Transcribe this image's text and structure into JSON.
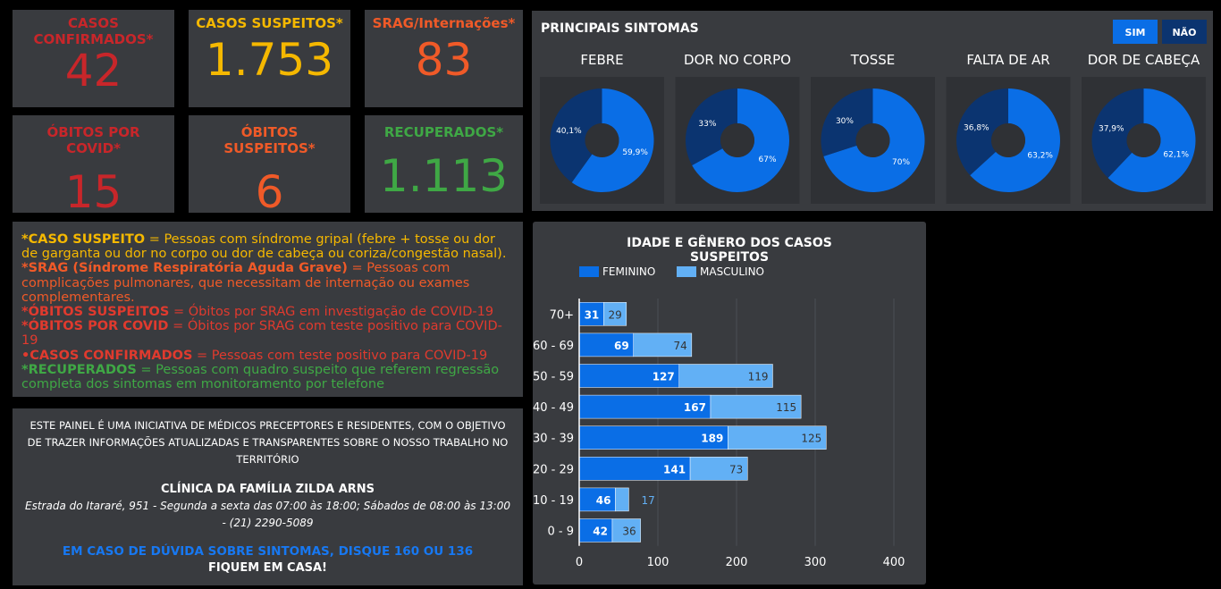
{
  "kpis": [
    {
      "label": "CASOS CONFIRMADOS*",
      "value": "42"
    },
    {
      "label": "CASOS SUSPEITOS*",
      "value": "1.753"
    },
    {
      "label": "SRAG/Internações*",
      "value": "83"
    },
    {
      "label": "ÓBITOS POR COVID*",
      "value": "15"
    },
    {
      "label": "ÓBITOS SUSPEITOS*",
      "value": "6"
    },
    {
      "label": "RECUPERADOS*",
      "value": "1.113"
    }
  ],
  "definitions": [
    {
      "term": "*CASO SUSPEITO",
      "text": "= Pessoas com síndrome gripal (febre + tosse ou dor de garganta ou dor no corpo ou dor de cabeça ou coriza/congestão nasal)."
    },
    {
      "term": "*SRAG (Síndrome Respiratória Aguda Grave)",
      "text": "= Pessoas com complicações pulmonares, que necessitam de internação ou exames complementares."
    },
    {
      "term": "*ÓBITOS SUSPEITOS",
      "text": "= Óbitos por SRAG em investigação de COVID-19"
    },
    {
      "term": "*ÓBITOS POR COVID",
      "text": "= Óbitos por SRAG com teste positivo para COVID-19"
    },
    {
      "term": "•CASOS CONFIRMADOS",
      "text": "= Pessoas com teste positivo para COVID-19"
    },
    {
      "term": "*RECUPERADOS",
      "text": "= Pessoas com quadro suspeito que referem regressão completa dos sintomas em monitoramento por telefone"
    }
  ],
  "info": {
    "text": "ESTE PAINEL É UMA INICIATIVA DE MÉDICOS PRECEPTORES E RESIDENTES, COM O OBJETIVO DE TRAZER INFORMAÇÕES ATUALIZADAS E TRANSPARENTES SOBRE O NOSSO TRABALHO NO TERRITÓRIO",
    "clinic": "CLÍNICA DA FAMÍLIA ZILDA ARNS",
    "address": "Estrada do Itararé, 951 - Segunda a sexta das 07:00 às 18:00; Sábados de 08:00 às 13:00 - (21) 2290-5089",
    "hotline": "EM CASO DE DÚVIDA SOBRE SINTOMAS, DISQUE 160 OU 136",
    "closing": "FIQUEM EM CASA!"
  },
  "chart_data": [
    {
      "type": "pie",
      "title": "PRINCIPAIS SINTOMAS",
      "categories": [
        "FEBRE",
        "DOR NO CORPO",
        "TOSSE",
        "FALTA DE AR",
        "DOR DE CABEÇA"
      ],
      "series": [
        {
          "name": "SIM",
          "color": "#0a6ee6",
          "values": [
            59.9,
            67,
            70,
            63.2,
            62.1
          ],
          "value_labels": [
            "59,9%",
            "67%",
            "70%",
            "63,2%",
            "62,1%"
          ]
        },
        {
          "name": "NÃO",
          "color": "#0b3470",
          "values": [
            40.1,
            33,
            30,
            36.8,
            37.9
          ],
          "value_labels": [
            "40,1%",
            "33%",
            "30%",
            "36,8%",
            "37,9%"
          ]
        }
      ]
    },
    {
      "type": "bar",
      "orientation": "horizontal",
      "stacked": true,
      "grid": true,
      "title": "IDADE E GÊNERO DOS CASOS SUSPEITOS",
      "categories": [
        "70+",
        "60 - 69",
        "50 - 59",
        "40 - 49",
        "30 - 39",
        "20 - 29",
        "10 - 19",
        "0 - 9"
      ],
      "series": [
        {
          "name": "FEMININO",
          "color": "#0a6ee6",
          "values": [
            31,
            69,
            127,
            167,
            189,
            141,
            46,
            42
          ]
        },
        {
          "name": "MASCULINO",
          "color": "#62b0f5",
          "values": [
            29,
            74,
            119,
            115,
            125,
            73,
            17,
            36
          ]
        }
      ],
      "xlim": [
        0,
        400
      ],
      "xticks": [
        0,
        100,
        200,
        300,
        400
      ]
    }
  ]
}
